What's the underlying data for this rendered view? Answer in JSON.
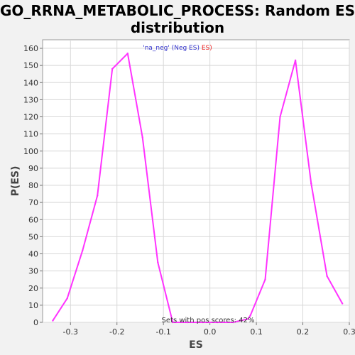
{
  "chart_data": {
    "type": "line",
    "title_line1": "GO_RRNA_METABOLIC_PROCESS: Random ES",
    "title_line2": "distribution",
    "xlabel": "ES",
    "ylabel": "P(ES)",
    "xlim": [
      -0.36,
      0.3
    ],
    "ylim": [
      0,
      165
    ],
    "xticks": [
      -0.3,
      -0.2,
      -0.1,
      0.0,
      0.1,
      0.2,
      0.3
    ],
    "xtick_labels": [
      "-0.3",
      "-0.2",
      "-0.1",
      "0.0",
      "0.1",
      "0.2",
      "0.3"
    ],
    "yticks": [
      0,
      10,
      20,
      30,
      40,
      50,
      60,
      70,
      80,
      90,
      100,
      110,
      120,
      130,
      140,
      150,
      160
    ],
    "ytick_labels": [
      "0",
      "10",
      "20",
      "30",
      "40",
      "50",
      "60",
      "70",
      "80",
      "90",
      "100",
      "110",
      "120",
      "130",
      "140",
      "150",
      "160"
    ],
    "grid": true,
    "legend": {
      "part1": "'na_neg' (Neg ES)",
      "part2": "ES)",
      "color1": "#3333cc",
      "color2": "#ee2222",
      "placement": "top-center"
    },
    "annotation": "Sets with pos scores: 42%",
    "series": [
      {
        "color": "#ff33ff",
        "x": [
          -0.338,
          -0.307,
          -0.274,
          -0.242,
          -0.21,
          -0.177,
          -0.145,
          -0.112,
          -0.08,
          -0.048,
          -0.015,
          0.017,
          0.05,
          0.082,
          0.087,
          0.119,
          0.151,
          0.184,
          0.218,
          0.252,
          0.285
        ],
        "y": [
          1,
          14,
          42,
          74,
          148,
          157,
          108,
          35,
          0,
          0,
          0,
          0,
          0,
          2,
          4,
          25,
          120,
          153,
          81,
          27,
          11
        ]
      }
    ]
  }
}
